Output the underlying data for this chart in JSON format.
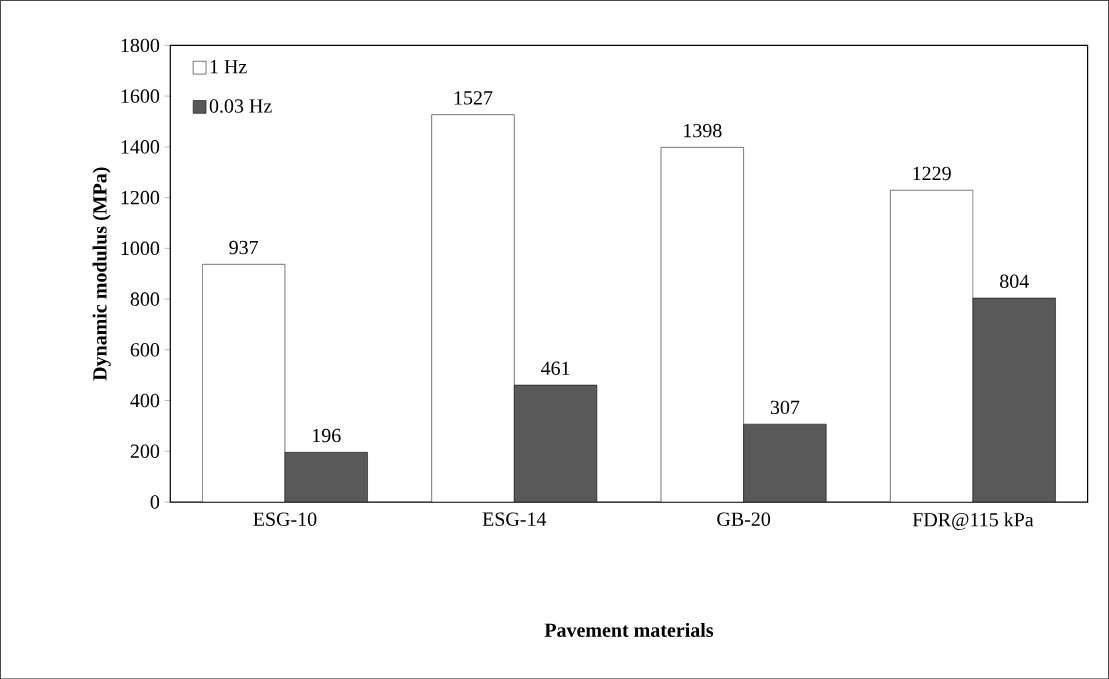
{
  "chart_data": {
    "type": "bar",
    "xlabel": "Pavement materials",
    "ylabel": "Dynamic modulus (MPa)",
    "categories": [
      "ESG-10",
      "ESG-14",
      "GB-20",
      "FDR@115 kPa"
    ],
    "series": [
      {
        "name": "1 Hz",
        "color": "#ffffff",
        "values": [
          937,
          1527,
          1398,
          1229
        ]
      },
      {
        "name": "0.03 Hz",
        "color": "#595959",
        "values": [
          196,
          461,
          307,
          804
        ]
      }
    ],
    "ylim": [
      0,
      1800
    ],
    "yticks": [
      0,
      200,
      400,
      600,
      800,
      1000,
      1200,
      1400,
      1600,
      1800
    ],
    "data_labels": true,
    "grid": false,
    "legend": "top left"
  }
}
